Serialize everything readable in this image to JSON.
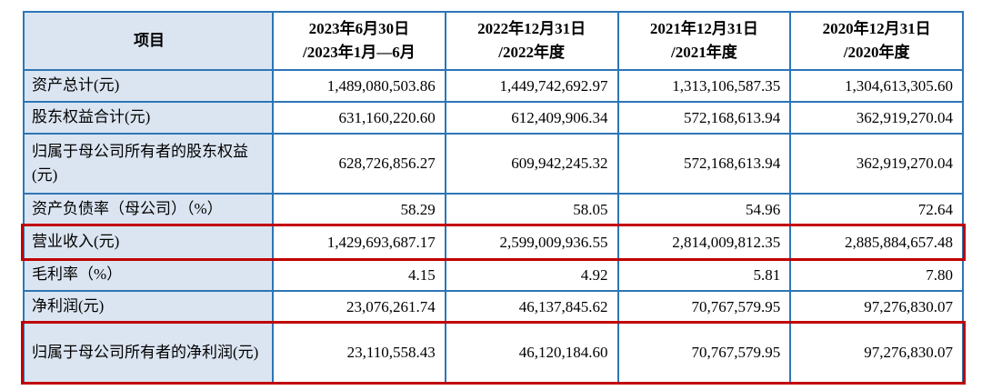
{
  "colors": {
    "border_blue": "#2e75b6",
    "label_bg": "#dbe5f1",
    "highlight_red": "#c00000"
  },
  "table": {
    "header": {
      "item_label": "项目",
      "periods": [
        {
          "line1": "2023年6月30日",
          "line2": "/2023年1月—6月"
        },
        {
          "line1": "2022年12月31日",
          "line2": "/2022年度"
        },
        {
          "line1": "2021年12月31日",
          "line2": "/2021年度"
        },
        {
          "line1": "2020年12月31日",
          "line2": "/2020年度"
        }
      ]
    },
    "rows": [
      {
        "label": "资产总计(元)",
        "highlighted": false,
        "values": [
          "1,489,080,503.86",
          "1,449,742,692.97",
          "1,313,106,587.35",
          "1,304,613,305.60"
        ]
      },
      {
        "label": "股东权益合计(元)",
        "highlighted": false,
        "values": [
          "631,160,220.60",
          "612,409,906.34",
          "572,168,613.94",
          "362,919,270.04"
        ]
      },
      {
        "label": "归属于母公司所有者的股东权益(元)",
        "highlighted": false,
        "values": [
          "628,726,856.27",
          "609,942,245.32",
          "572,168,613.94",
          "362,919,270.04"
        ]
      },
      {
        "label": "资产负债率（母公司）（%）",
        "highlighted": false,
        "values": [
          "58.29",
          "58.05",
          "54.96",
          "72.64"
        ]
      },
      {
        "label": "营业收入(元)",
        "highlighted": true,
        "values": [
          "1,429,693,687.17",
          "2,599,009,936.55",
          "2,814,009,812.35",
          "2,885,884,657.48"
        ]
      },
      {
        "label": "毛利率（%）",
        "highlighted": false,
        "values": [
          "4.15",
          "4.92",
          "5.81",
          "7.80"
        ]
      },
      {
        "label": "净利润(元)",
        "highlighted": false,
        "values": [
          "23,076,261.74",
          "46,137,845.62",
          "70,767,579.95",
          "97,276,830.07"
        ]
      },
      {
        "label": "归属于母公司所有者的净利润(元)",
        "highlighted": true,
        "values": [
          "23,110,558.43",
          "46,120,184.60",
          "70,767,579.95",
          "97,276,830.07"
        ]
      }
    ]
  }
}
